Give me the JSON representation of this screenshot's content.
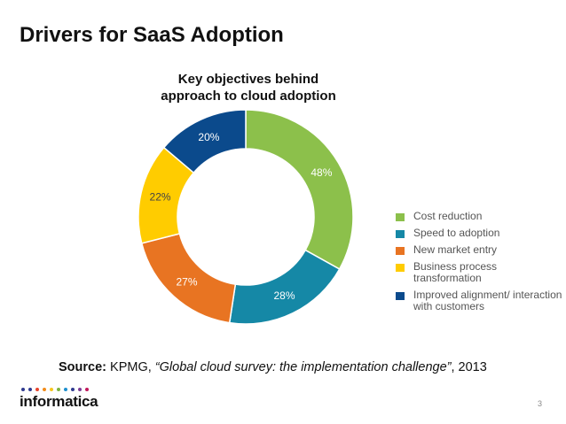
{
  "slide": {
    "title": "Drivers for SaaS Adoption",
    "page_number": "3"
  },
  "chart_data": {
    "type": "pie",
    "variant": "donut",
    "title_line1": "Key objectives behind",
    "title_line2": "approach to cloud adoption",
    "slices": [
      {
        "label": "Cost reduction",
        "value": 48,
        "display": "48%",
        "color": "#8cc04b"
      },
      {
        "label": "Speed to adoption",
        "value": 28,
        "display": "28%",
        "color": "#1588a6"
      },
      {
        "label": "New market entry",
        "value": 27,
        "display": "27%",
        "color": "#e87422"
      },
      {
        "label": "Business process transformation",
        "value": 22,
        "display": "22%",
        "color": "#ffcc00"
      },
      {
        "label": "Improved alignment/ interaction with customers",
        "value": 20,
        "display": "20%",
        "color": "#0b4a8c"
      }
    ],
    "legend_position": "right"
  },
  "source": {
    "prefix": "Source:",
    "org": " KPMG, ",
    "publication": "“Global cloud survey: the implementation challenge”",
    "year": ", 2013"
  },
  "logo": {
    "text": "informatica",
    "dot_colors": [
      "#2f3a8f",
      "#2f3a8f",
      "#e8452c",
      "#f28c1a",
      "#f7c61e",
      "#7cb342",
      "#1d8fcf",
      "#2f3a8f",
      "#7b3c96",
      "#c2185b"
    ]
  }
}
